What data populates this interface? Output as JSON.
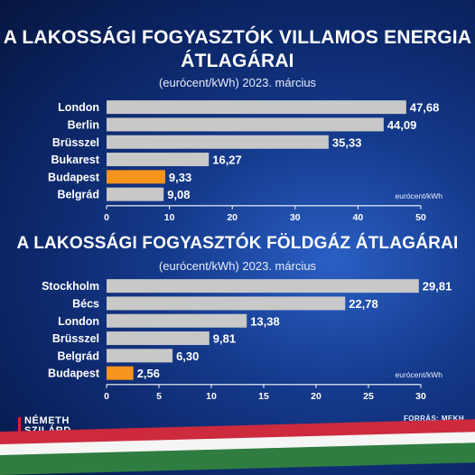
{
  "charts_text": {
    "chart1_title_line1": "A LAKOSSÁGI FOGYASZTÓK VILLAMOS ENERGIA",
    "chart1_title_line2": "ÁTLAGÁRAI",
    "chart1_subtitle": "(eurócent/kWh) 2023. március",
    "chart2_title": "A LAKOSSÁGI FOGYASZTÓK FÖLDGÁZ ÁTLAGÁRAI",
    "chart2_subtitle": "(eurócent/kWh) 2023. március"
  },
  "branding": {
    "name_line1": "NÉMETH",
    "name_line2": "SZILÁRD"
  },
  "source": "FORRÁS: MEKH",
  "colors": {
    "bar": "#c8c8c8",
    "highlight": "#f7941d",
    "flag_red": "#cd2a3e",
    "flag_white": "#f5f5f5",
    "flag_green": "#2f7d40"
  },
  "chart_data": [
    {
      "type": "bar",
      "orientation": "horizontal",
      "title": "A LAKOSSÁGI FOGYASZTÓK VILLAMOS ENERGIA ÁTLAGÁRAI",
      "subtitle": "(eurócent/kWh) 2023. március",
      "categories": [
        "London",
        "Berlin",
        "Brüsszel",
        "Bukarest",
        "Budapest",
        "Belgrád"
      ],
      "values": [
        47.68,
        44.09,
        35.33,
        16.27,
        9.33,
        9.08
      ],
      "value_labels": [
        "47,68",
        "44,09",
        "35,33",
        "16,27",
        "9,33",
        "9,08"
      ],
      "highlight": "Budapest",
      "unit_label": "eurócent/kWh",
      "xlim": [
        0,
        50
      ],
      "xticks": [
        0,
        10,
        20,
        30,
        40,
        50
      ],
      "grid": false
    },
    {
      "type": "bar",
      "orientation": "horizontal",
      "title": "A LAKOSSÁGI FOGYASZTÓK FÖLDGÁZ ÁTLAGÁRAI",
      "subtitle": "(eurócent/kWh) 2023. március",
      "categories": [
        "Stockholm",
        "Bécs",
        "London",
        "Brüsszel",
        "Belgrád",
        "Budapest"
      ],
      "values": [
        29.81,
        22.78,
        13.38,
        9.81,
        6.3,
        2.56
      ],
      "value_labels": [
        "29,81",
        "22,78",
        "13,38",
        "9,81",
        "6,30",
        "2,56"
      ],
      "highlight": "Budapest",
      "unit_label": "eurócent/kWh",
      "xlim": [
        0,
        30
      ],
      "xticks": [
        0,
        5,
        10,
        15,
        20,
        25,
        30
      ],
      "grid": false
    }
  ]
}
